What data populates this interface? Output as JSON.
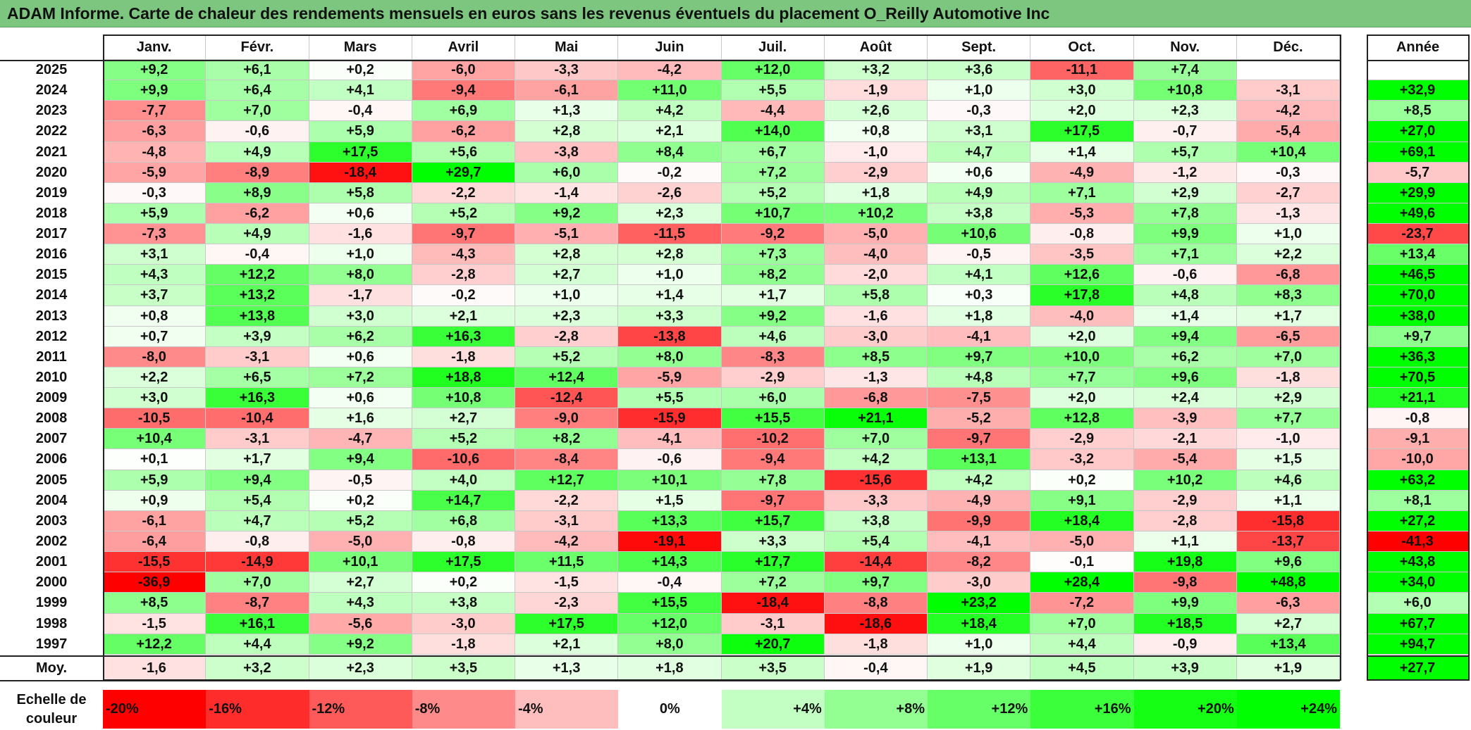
{
  "title": "ADAM Informe. Carte de chaleur des rendements mensuels en euros sans les revenus éventuels du placement O_Reilly Automotive Inc",
  "colors": {
    "title_bg": "#7dc67f",
    "neg_max": "#ff0000",
    "zero": "#ffffff",
    "pos_max": "#00ff00"
  },
  "chart_data": {
    "type": "heatmap",
    "title": "ADAM Informe. Carte de chaleur des rendements mensuels en euros sans les revenus éventuels du placement O_Reilly Automotive Inc",
    "columns": [
      "Janv.",
      "Févr.",
      "Mars",
      "Avril",
      "Mai",
      "Juin",
      "Juil.",
      "Août",
      "Sept.",
      "Oct.",
      "Nov.",
      "Déc."
    ],
    "year_header": "Année",
    "rows": [
      {
        "year": "2025",
        "values": [
          "+9,2",
          "+6,1",
          "+0,2",
          "-6,0",
          "-3,3",
          "-4,2",
          "+12,0",
          "+3,2",
          "+3,6",
          "-11,1",
          "+7,4",
          ""
        ],
        "annual": ""
      },
      {
        "year": "2024",
        "values": [
          "+9,9",
          "+6,4",
          "+4,1",
          "-9,4",
          "-6,1",
          "+11,0",
          "+5,5",
          "-1,9",
          "+1,0",
          "+3,0",
          "+10,8",
          "-3,1"
        ],
        "annual": "+32,9"
      },
      {
        "year": "2023",
        "values": [
          "-7,7",
          "+7,0",
          "-0,4",
          "+6,9",
          "+1,3",
          "+4,2",
          "-4,4",
          "+2,6",
          "-0,3",
          "+2,0",
          "+2,3",
          "-4,2"
        ],
        "annual": "+8,5"
      },
      {
        "year": "2022",
        "values": [
          "-6,3",
          "-0,6",
          "+5,9",
          "-6,2",
          "+2,8",
          "+2,1",
          "+14,0",
          "+0,8",
          "+3,1",
          "+17,5",
          "-0,7",
          "-5,4"
        ],
        "annual": "+27,0"
      },
      {
        "year": "2021",
        "values": [
          "-4,8",
          "+4,9",
          "+17,5",
          "+5,6",
          "-3,8",
          "+8,4",
          "+6,7",
          "-1,0",
          "+4,7",
          "+1,4",
          "+5,7",
          "+10,4"
        ],
        "annual": "+69,1"
      },
      {
        "year": "2020",
        "values": [
          "-5,9",
          "-8,9",
          "-18,4",
          "+29,7",
          "+6,0",
          "-0,2",
          "+7,2",
          "-2,9",
          "+0,6",
          "-4,9",
          "-1,2",
          "-0,3"
        ],
        "annual": "-5,7"
      },
      {
        "year": "2019",
        "values": [
          "-0,3",
          "+8,9",
          "+5,8",
          "-2,2",
          "-1,4",
          "-2,6",
          "+5,2",
          "+1,8",
          "+4,9",
          "+7,1",
          "+2,9",
          "-2,7"
        ],
        "annual": "+29,9"
      },
      {
        "year": "2018",
        "values": [
          "+5,9",
          "-6,2",
          "+0,6",
          "+5,2",
          "+9,2",
          "+2,3",
          "+10,7",
          "+10,2",
          "+3,8",
          "-5,3",
          "+7,8",
          "-1,3"
        ],
        "annual": "+49,6"
      },
      {
        "year": "2017",
        "values": [
          "-7,3",
          "+4,9",
          "-1,6",
          "-9,7",
          "-5,1",
          "-11,5",
          "-9,2",
          "-5,0",
          "+10,6",
          "-0,8",
          "+9,9",
          "+1,0"
        ],
        "annual": "-23,7"
      },
      {
        "year": "2016",
        "values": [
          "+3,1",
          "-0,4",
          "+1,0",
          "-4,3",
          "+2,8",
          "+2,8",
          "+7,3",
          "-4,0",
          "-0,5",
          "-3,5",
          "+7,1",
          "+2,2"
        ],
        "annual": "+13,4"
      },
      {
        "year": "2015",
        "values": [
          "+4,3",
          "+12,2",
          "+8,0",
          "-2,8",
          "+2,7",
          "+1,0",
          "+8,2",
          "-2,0",
          "+4,1",
          "+12,6",
          "-0,6",
          "-6,8"
        ],
        "annual": "+46,5"
      },
      {
        "year": "2014",
        "values": [
          "+3,7",
          "+13,2",
          "-1,7",
          "-0,2",
          "+1,0",
          "+1,4",
          "+1,7",
          "+5,8",
          "+0,3",
          "+17,8",
          "+4,8",
          "+8,3"
        ],
        "annual": "+70,0"
      },
      {
        "year": "2013",
        "values": [
          "+0,8",
          "+13,8",
          "+3,0",
          "+2,1",
          "+2,3",
          "+3,3",
          "+9,2",
          "-1,6",
          "+1,8",
          "-4,0",
          "+1,4",
          "+1,7"
        ],
        "annual": "+38,0"
      },
      {
        "year": "2012",
        "values": [
          "+0,7",
          "+3,9",
          "+6,2",
          "+16,3",
          "-2,8",
          "-13,8",
          "+4,6",
          "-3,0",
          "-4,1",
          "+2,0",
          "+9,4",
          "-6,5"
        ],
        "annual": "+9,7"
      },
      {
        "year": "2011",
        "values": [
          "-8,0",
          "-3,1",
          "+0,6",
          "-1,8",
          "+5,2",
          "+8,0",
          "-8,3",
          "+8,5",
          "+9,7",
          "+10,0",
          "+6,2",
          "+7,0"
        ],
        "annual": "+36,3"
      },
      {
        "year": "2010",
        "values": [
          "+2,2",
          "+6,5",
          "+7,2",
          "+18,8",
          "+12,4",
          "-5,9",
          "-2,9",
          "-1,3",
          "+4,8",
          "+7,7",
          "+9,6",
          "-1,8"
        ],
        "annual": "+70,5"
      },
      {
        "year": "2009",
        "values": [
          "+3,0",
          "+16,3",
          "+0,6",
          "+10,8",
          "-12,4",
          "+5,5",
          "+6,0",
          "-6,8",
          "-7,5",
          "+2,0",
          "+2,4",
          "+2,9"
        ],
        "annual": "+21,1"
      },
      {
        "year": "2008",
        "values": [
          "-10,5",
          "-10,4",
          "+1,6",
          "+2,7",
          "-9,0",
          "-15,9",
          "+15,5",
          "+21,1",
          "-5,2",
          "+12,8",
          "-3,9",
          "+7,7"
        ],
        "annual": "-0,8"
      },
      {
        "year": "2007",
        "values": [
          "+10,4",
          "-3,1",
          "-4,7",
          "+5,2",
          "+8,2",
          "-4,1",
          "-10,2",
          "+7,0",
          "-9,7",
          "-2,9",
          "-2,1",
          "-1,0"
        ],
        "annual": "-9,1"
      },
      {
        "year": "2006",
        "values": [
          "+0,1",
          "+1,7",
          "+9,4",
          "-10,6",
          "-8,4",
          "-0,6",
          "-9,4",
          "+4,2",
          "+13,1",
          "-3,2",
          "-5,4",
          "+1,5"
        ],
        "annual": "-10,0"
      },
      {
        "year": "2005",
        "values": [
          "+5,9",
          "+9,4",
          "-0,5",
          "+4,0",
          "+12,7",
          "+10,1",
          "+7,8",
          "-15,6",
          "+4,2",
          "+0,2",
          "+10,2",
          "+4,6"
        ],
        "annual": "+63,2"
      },
      {
        "year": "2004",
        "values": [
          "+0,9",
          "+5,4",
          "+0,2",
          "+14,7",
          "-2,2",
          "+1,5",
          "-9,7",
          "-3,3",
          "-4,9",
          "+9,1",
          "-2,9",
          "+1,1"
        ],
        "annual": "+8,1"
      },
      {
        "year": "2003",
        "values": [
          "-6,1",
          "+4,7",
          "+5,2",
          "+6,8",
          "-3,1",
          "+13,3",
          "+15,7",
          "+3,8",
          "-9,9",
          "+18,4",
          "-2,8",
          "-15,8"
        ],
        "annual": "+27,2"
      },
      {
        "year": "2002",
        "values": [
          "-6,4",
          "-0,8",
          "-5,0",
          "-0,8",
          "-4,2",
          "-19,1",
          "+3,3",
          "+5,4",
          "-4,1",
          "-5,0",
          "+1,1",
          "-13,7"
        ],
        "annual": "-41,3"
      },
      {
        "year": "2001",
        "values": [
          "-15,5",
          "-14,9",
          "+10,1",
          "+17,5",
          "+11,5",
          "+14,3",
          "+17,7",
          "-14,4",
          "-8,2",
          "-0,1",
          "+19,8",
          "+9,6"
        ],
        "annual": "+43,8"
      },
      {
        "year": "2000",
        "values": [
          "-36,9",
          "+7,0",
          "+2,7",
          "+0,2",
          "-1,5",
          "-0,4",
          "+7,2",
          "+9,7",
          "-3,0",
          "+28,4",
          "-9,8",
          "+48,8"
        ],
        "annual": "+34,0"
      },
      {
        "year": "1999",
        "values": [
          "+8,5",
          "-8,7",
          "+4,3",
          "+3,8",
          "-2,3",
          "+15,5",
          "-18,4",
          "-8,8",
          "+23,2",
          "-7,2",
          "+9,9",
          "-6,3"
        ],
        "annual": "+6,0"
      },
      {
        "year": "1998",
        "values": [
          "-1,5",
          "+16,1",
          "-5,6",
          "-3,0",
          "+17,5",
          "+12,0",
          "-3,1",
          "-18,6",
          "+18,4",
          "+7,0",
          "+18,5",
          "+2,7"
        ],
        "annual": "+67,7"
      },
      {
        "year": "1997",
        "values": [
          "+12,2",
          "+4,4",
          "+9,2",
          "-1,8",
          "+2,1",
          "+8,0",
          "+20,7",
          "-1,8",
          "+1,0",
          "+4,4",
          "-0,9",
          "+13,4"
        ],
        "annual": "+94,7"
      }
    ],
    "average": {
      "label": "Moy.",
      "values": [
        "-1,6",
        "+3,2",
        "+2,3",
        "+3,5",
        "+1,3",
        "+1,8",
        "+3,5",
        "-0,4",
        "+1,9",
        "+4,5",
        "+3,9",
        "+1,9"
      ],
      "annual": "+27,7"
    },
    "color_scale": {
      "label_line1": "Echelle de",
      "label_line2": "couleur",
      "stops": [
        {
          "label": "-20%",
          "value": -20
        },
        {
          "label": "-16%",
          "value": -16
        },
        {
          "label": "-12%",
          "value": -12
        },
        {
          "label": "-8%",
          "value": -8
        },
        {
          "label": "-4%",
          "value": -4
        },
        {
          "label": "0%",
          "value": 0
        },
        {
          "label": "+4%",
          "value": 4
        },
        {
          "label": "+8%",
          "value": 8
        },
        {
          "label": "+12%",
          "value": 12
        },
        {
          "label": "+16%",
          "value": 16
        },
        {
          "label": "+20%",
          "value": 20
        },
        {
          "label": "+24%",
          "value": 24
        }
      ]
    }
  }
}
